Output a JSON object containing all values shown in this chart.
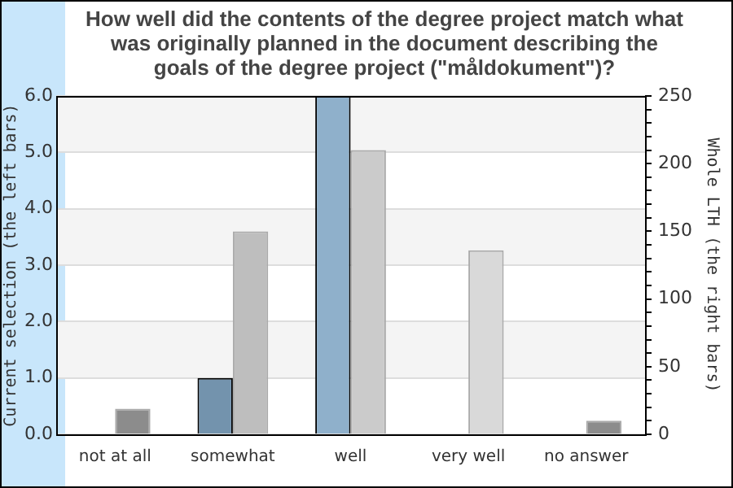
{
  "chart_data": {
    "type": "bar",
    "title": "How well did the contents of the degree project match what was originally planned in the document describing the goals of the degree project (\"måldokument\")?",
    "ylabel": "Current selection (the left bars)",
    "y2label": "Whole LTH (the right bars)",
    "categories": [
      "not at all",
      "somewhat",
      "well",
      "very well",
      "no answer"
    ],
    "series": [
      {
        "values": [
          0,
          1,
          6,
          0,
          0
        ],
        "colors": [
          "#7393ad",
          "#7393ad",
          "#8fb0cb",
          "#7393ad",
          "#7393ad"
        ]
      },
      {
        "axis": "y2",
        "values": [
          19,
          150,
          210,
          136,
          10
        ],
        "colors": [
          "#8c8c8c",
          "#bebebe",
          "#cbcbcb",
          "#d9d9d9",
          "#8c8c8c"
        ]
      }
    ],
    "ylim": [
      0,
      6
    ],
    "yticks": [
      {
        "value": 0,
        "label": "0.0"
      },
      {
        "value": 1,
        "label": "1.0"
      },
      {
        "value": 2,
        "label": "2.0"
      },
      {
        "value": 3,
        "label": "3.0"
      },
      {
        "value": 4,
        "label": "4.0"
      },
      {
        "value": 5,
        "label": "5.0"
      },
      {
        "value": 6,
        "label": "6.0"
      }
    ],
    "y2lim": [
      0,
      250
    ],
    "y2ticks": [
      0,
      {
        "value": 10,
        "label": null
      },
      {
        "value": 20,
        "label": null
      },
      {
        "value": 30,
        "label": null
      },
      {
        "value": 40,
        "label": null
      },
      50,
      {
        "value": 60,
        "label": null
      },
      {
        "value": 70,
        "label": null
      },
      {
        "value": 80,
        "label": null
      },
      {
        "value": 90,
        "label": null
      },
      100,
      {
        "value": 110,
        "label": null
      },
      {
        "value": 120,
        "label": null
      },
      {
        "value": 130,
        "label": null
      },
      {
        "value": 140,
        "label": null
      },
      150,
      {
        "value": 160,
        "label": null
      },
      {
        "value": 170,
        "label": null
      },
      {
        "value": 180,
        "label": null
      },
      {
        "value": 190,
        "label": null
      },
      200,
      {
        "value": 210,
        "label": null
      },
      {
        "value": 220,
        "label": null
      },
      {
        "value": 230,
        "label": null
      },
      {
        "value": 240,
        "label": null
      },
      250
    ],
    "grid": "y"
  }
}
